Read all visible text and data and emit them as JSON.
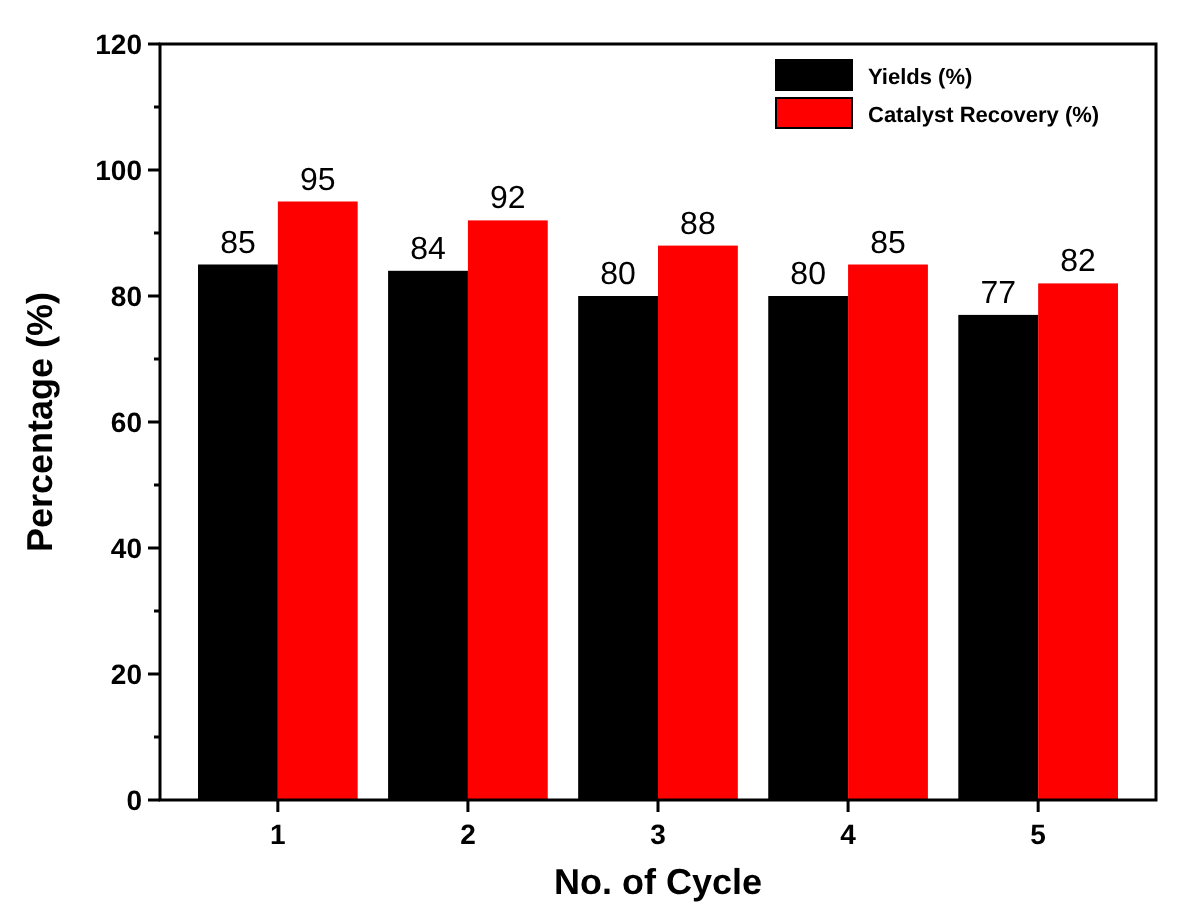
{
  "chart_data": {
    "type": "bar",
    "xlabel": "No. of Cycle",
    "ylabel": "Percentage (%)",
    "categories": [
      "1",
      "2",
      "3",
      "4",
      "5"
    ],
    "series": [
      {
        "name": "Yields (%)",
        "color": "#000000",
        "values": [
          85,
          84,
          80,
          80,
          77
        ]
      },
      {
        "name": "Catalyst Recovery (%)",
        "color": "#ff0000",
        "values": [
          95,
          92,
          88,
          85,
          82
        ]
      }
    ],
    "ylim": [
      0,
      120
    ],
    "yticks": [
      0,
      {
        "value": 10,
        "label": null
      },
      20,
      {
        "value": 30,
        "label": null
      },
      40,
      {
        "value": 50,
        "label": null
      },
      60,
      {
        "value": 70,
        "label": null
      },
      80,
      {
        "value": 90,
        "label": null
      },
      100,
      {
        "value": 110,
        "label": null
      },
      120
    ],
    "data_labels": true,
    "legend": "top right",
    "grid": false
  }
}
